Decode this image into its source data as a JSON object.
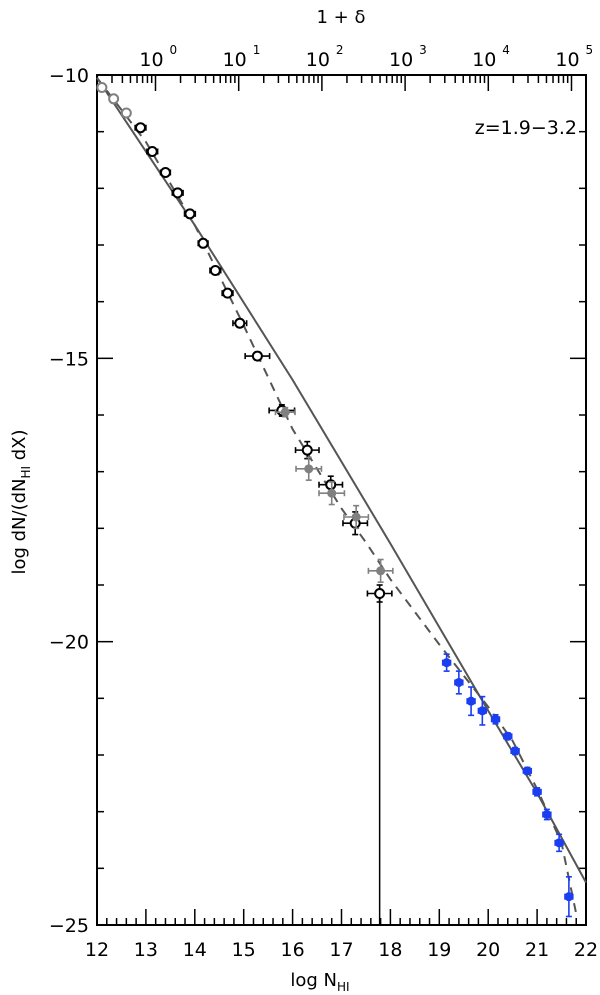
{
  "chart_data": {
    "type": "scatter",
    "xlabel_main": "log N",
    "xlabel_sub": "HI",
    "xlim": [
      12,
      22
    ],
    "x_ticks": [
      "12",
      "13",
      "14",
      "15",
      "16",
      "17",
      "18",
      "19",
      "20",
      "21",
      "22"
    ],
    "ylabel_pre": "log dN/(dN",
    "ylabel_sub": "HI",
    "ylabel_post": " dX)",
    "ylim": [
      -25,
      -10
    ],
    "y_ticks": [
      "−10",
      "−15",
      "−20",
      "−25"
    ],
    "top_axis_label": "1 + δ",
    "top_ticks": [
      {
        "base": "10",
        "exp": "0"
      },
      {
        "base": "10",
        "exp": "1"
      },
      {
        "base": "10",
        "exp": "2"
      },
      {
        "base": "10",
        "exp": "3"
      },
      {
        "base": "10",
        "exp": "4"
      },
      {
        "base": "10",
        "exp": "5"
      }
    ],
    "annotation": "z=1.9−3.2",
    "colors": {
      "black": "#000000",
      "gray": "#808080",
      "blue": "#1a3ef0",
      "line": "#555555"
    },
    "series": [
      {
        "marker": "open-circle",
        "color": "black",
        "points": [
          {
            "x": 12.89,
            "y": -10.93,
            "xerr": 0.11,
            "yerr": 0.05
          },
          {
            "x": 13.13,
            "y": -11.35,
            "xerr": 0.11,
            "yerr": 0.05
          },
          {
            "x": 13.4,
            "y": -11.72,
            "xerr": 0.1,
            "yerr": 0.05
          },
          {
            "x": 13.65,
            "y": -12.08,
            "xerr": 0.11,
            "yerr": 0.05
          },
          {
            "x": 13.9,
            "y": -12.45,
            "xerr": 0.11,
            "yerr": 0.05
          },
          {
            "x": 14.17,
            "y": -12.97,
            "xerr": 0.1,
            "yerr": 0.06
          },
          {
            "x": 14.42,
            "y": -13.45,
            "xerr": 0.11,
            "yerr": 0.06
          },
          {
            "x": 14.67,
            "y": -13.85,
            "xerr": 0.11,
            "yerr": 0.06
          },
          {
            "x": 14.92,
            "y": -14.38,
            "xerr": 0.14,
            "yerr": 0.07
          },
          {
            "x": 15.28,
            "y": -14.96,
            "xerr": 0.25,
            "yerr": 0.07
          },
          {
            "x": 15.78,
            "y": -15.92,
            "xerr": 0.26,
            "yerr": 0.1
          },
          {
            "x": 16.3,
            "y": -16.62,
            "xerr": 0.24,
            "yerr": 0.15
          },
          {
            "x": 16.78,
            "y": -17.23,
            "xerr": 0.24,
            "yerr": 0.15
          },
          {
            "x": 17.28,
            "y": -17.91,
            "xerr": 0.25,
            "yerr": 0.2
          },
          {
            "x": 17.78,
            "y": -19.15,
            "xerr": 0.25,
            "yerr": 0.15
          }
        ]
      },
      {
        "marker": "open-circle",
        "color": "gray",
        "points": [
          {
            "x": 12.1,
            "y": -10.22,
            "xerr": 0.04,
            "yerr": 0.04
          },
          {
            "x": 12.34,
            "y": -10.42,
            "xerr": 0.05,
            "yerr": 0.04
          },
          {
            "x": 12.6,
            "y": -10.67,
            "xerr": 0.08,
            "yerr": 0.04
          }
        ]
      },
      {
        "marker": "filled-circle",
        "color": "gray",
        "points": [
          {
            "x": 15.85,
            "y": -15.95,
            "xerr": 0.2,
            "yerr": 0.08
          },
          {
            "x": 16.33,
            "y": -16.95,
            "xerr": 0.26,
            "yerr": 0.2
          },
          {
            "x": 16.8,
            "y": -17.38,
            "xerr": 0.26,
            "yerr": 0.2
          },
          {
            "x": 17.3,
            "y": -17.8,
            "xerr": 0.25,
            "yerr": 0.2
          },
          {
            "x": 17.8,
            "y": -18.75,
            "xerr": 0.25,
            "yerr": 0.2
          }
        ]
      },
      {
        "marker": "filled-circle",
        "color": "blue",
        "points": [
          {
            "x": 19.15,
            "y": -20.37,
            "xerr": 0.08,
            "yerr": 0.15
          },
          {
            "x": 19.4,
            "y": -20.72,
            "xerr": 0.08,
            "yerr": 0.2
          },
          {
            "x": 19.65,
            "y": -21.05,
            "xerr": 0.08,
            "yerr": 0.25
          },
          {
            "x": 19.88,
            "y": -21.22,
            "xerr": 0.08,
            "yerr": 0.25
          },
          {
            "x": 20.15,
            "y": -21.37,
            "xerr": 0.08,
            "yerr": 0.08
          },
          {
            "x": 20.4,
            "y": -21.67,
            "xerr": 0.08,
            "yerr": 0.06
          },
          {
            "x": 20.55,
            "y": -21.93,
            "xerr": 0.08,
            "yerr": 0.06
          },
          {
            "x": 20.8,
            "y": -22.28,
            "xerr": 0.08,
            "yerr": 0.06
          },
          {
            "x": 21.0,
            "y": -22.65,
            "xerr": 0.08,
            "yerr": 0.07
          },
          {
            "x": 21.2,
            "y": -23.05,
            "xerr": 0.08,
            "yerr": 0.09
          },
          {
            "x": 21.45,
            "y": -23.55,
            "xerr": 0.08,
            "yerr": 0.15
          },
          {
            "x": 21.65,
            "y": -24.5,
            "xerr": 0.08,
            "yerr": 0.35
          }
        ]
      }
    ],
    "solid_curve": [
      [
        12.0,
        -10.05
      ],
      [
        14.0,
        -12.65
      ],
      [
        16.0,
        -15.38
      ],
      [
        18.0,
        -18.27
      ],
      [
        20.0,
        -21.22
      ],
      [
        21.0,
        -22.67
      ],
      [
        22.0,
        -24.25
      ]
    ],
    "dashed_curve": [
      [
        12.0,
        -10.05
      ],
      [
        13.0,
        -11.18
      ],
      [
        14.0,
        -12.65
      ],
      [
        15.0,
        -14.42
      ],
      [
        16.0,
        -16.25
      ],
      [
        17.0,
        -17.65
      ],
      [
        17.5,
        -18.25
      ],
      [
        18.0,
        -18.9
      ],
      [
        19.0,
        -20.05
      ],
      [
        20.0,
        -21.15
      ],
      [
        20.5,
        -21.75
      ],
      [
        21.0,
        -22.6
      ],
      [
        21.5,
        -23.55
      ],
      [
        21.8,
        -24.8
      ]
    ],
    "vertical_line": {
      "x": 17.78,
      "y0": -19.15,
      "y1": -25
    }
  }
}
